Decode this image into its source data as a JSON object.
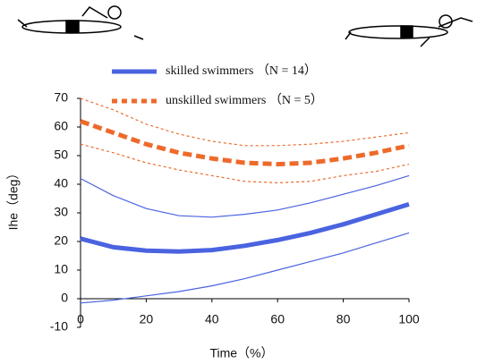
{
  "chart_data": {
    "type": "line",
    "x": [
      0,
      10,
      20,
      30,
      40,
      50,
      60,
      70,
      80,
      90,
      100
    ],
    "series": [
      {
        "name": "skilled swimmers （N = 14）",
        "color": "#4a63e0",
        "dashed": false,
        "values": [
          21,
          18,
          16.8,
          16.5,
          17,
          18.5,
          20.5,
          23,
          26,
          29.5,
          33
        ]
      },
      {
        "color": "#4a63e0",
        "dashed": false,
        "values": [
          42,
          36,
          31.5,
          29,
          28.5,
          29.5,
          31,
          33.5,
          36.5,
          39.5,
          43
        ]
      },
      {
        "color": "#4a63e0",
        "dashed": false,
        "values": [
          -1.5,
          -0.5,
          1,
          2.5,
          4.5,
          7,
          10,
          13,
          16,
          19.5,
          23
        ]
      },
      {
        "name": "unskilled swimmers （N = 5）",
        "color": "#ee6a2a",
        "dashed": true,
        "values": [
          62,
          58,
          54,
          51,
          49,
          47.5,
          47,
          47.5,
          49,
          51,
          53.5
        ]
      },
      {
        "color": "#ee6a2a",
        "dashed": true,
        "values": [
          70,
          66,
          61,
          57.5,
          55,
          53.5,
          53.5,
          54,
          55,
          56.5,
          58
        ]
      },
      {
        "color": "#ee6a2a",
        "dashed": true,
        "values": [
          54,
          51,
          47.5,
          45,
          43,
          41,
          40.5,
          41,
          43,
          44.5,
          47
        ]
      }
    ],
    "xlabel": "Time（%）",
    "ylabel": "Ihe（deg）",
    "xlim": [
      0,
      100
    ],
    "xticks": [
      0,
      20,
      40,
      60,
      80,
      100
    ],
    "ylim": [
      -10,
      70
    ],
    "yticks": [
      -10,
      0,
      10,
      20,
      30,
      40,
      50,
      60,
      70
    ]
  }
}
